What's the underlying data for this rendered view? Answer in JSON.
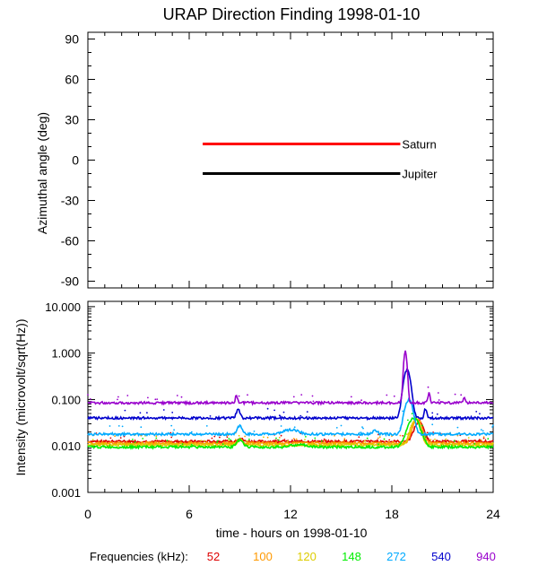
{
  "chart_data": [
    {
      "type": "line",
      "title": "URAP Direction Finding  1998-01-10",
      "ylabel": "Azimuthal angle (deg)",
      "ylim": [
        -95,
        95
      ],
      "yticks": [
        90,
        60,
        30,
        0,
        -30,
        -60,
        -90
      ],
      "xlim": [
        0,
        24
      ],
      "series": [
        {
          "name": "Saturn",
          "color": "#ff0000",
          "x": [
            6.8,
            18.5
          ],
          "y": [
            12,
            12
          ]
        },
        {
          "name": "Jupiter",
          "color": "#000000",
          "x": [
            6.8,
            18.5
          ],
          "y": [
            -10,
            -10
          ]
        }
      ]
    },
    {
      "type": "scatter",
      "ylabel": "Intensity (microvolt/sqrt(Hz))",
      "yscale": "log",
      "ylim": [
        0.001,
        13
      ],
      "yticks": [
        "10.000",
        "1.000",
        "0.100",
        "0.010",
        "0.001"
      ],
      "xlim": [
        0,
        24
      ],
      "xticks": [
        "0",
        "6",
        "12",
        "18",
        "24"
      ],
      "xlabel": "time - hours on 1998-01-10",
      "legend_title": "Frequencies (kHz):",
      "series": [
        {
          "name": "52",
          "color": "#dd0000",
          "baseline": 0.0125
        },
        {
          "name": "100",
          "color": "#ff9900",
          "baseline": 0.0115
        },
        {
          "name": "120",
          "color": "#ddcc00",
          "baseline": 0.0105
        },
        {
          "name": "148",
          "color": "#00ee00",
          "baseline": 0.0095
        },
        {
          "name": "272",
          "color": "#00aaff",
          "baseline": 0.018
        },
        {
          "name": "540",
          "color": "#0000cc",
          "baseline": 0.04
        },
        {
          "name": "940",
          "color": "#9900cc",
          "baseline": 0.085
        }
      ]
    }
  ]
}
